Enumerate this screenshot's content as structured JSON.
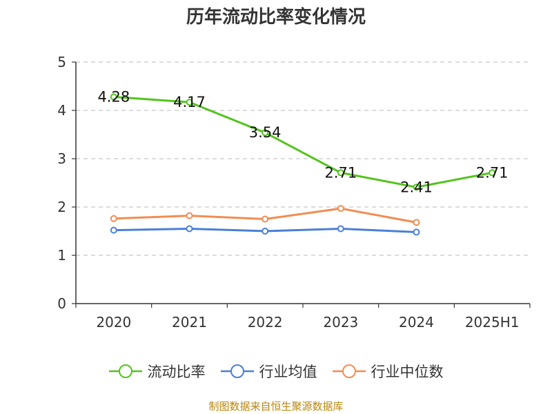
{
  "chart_data": {
    "type": "line",
    "title": "历年流动比率变化情况",
    "categories": [
      "2020",
      "2021",
      "2022",
      "2023",
      "2024",
      "2025H1"
    ],
    "ylim": [
      0,
      5
    ],
    "yticks": [
      "0",
      "1",
      "2",
      "3",
      "4",
      "5"
    ],
    "grid": true,
    "legend_position": "bottom",
    "series": [
      {
        "name": "流动比率",
        "color": "#52c41a",
        "values": [
          4.28,
          4.17,
          3.54,
          2.71,
          2.41,
          2.71
        ],
        "labels": [
          "4.28",
          "4.17",
          "3.54",
          "2.71",
          "2.41",
          "2.71"
        ]
      },
      {
        "name": "行业均值",
        "color": "#4a7fd8",
        "values": [
          1.52,
          1.55,
          1.5,
          1.55,
          1.48,
          null
        ]
      },
      {
        "name": "行业中位数",
        "color": "#f28c50",
        "values": [
          1.76,
          1.82,
          1.75,
          1.97,
          1.68,
          null
        ]
      }
    ]
  },
  "source": "制图数据来自恒生聚源数据库"
}
